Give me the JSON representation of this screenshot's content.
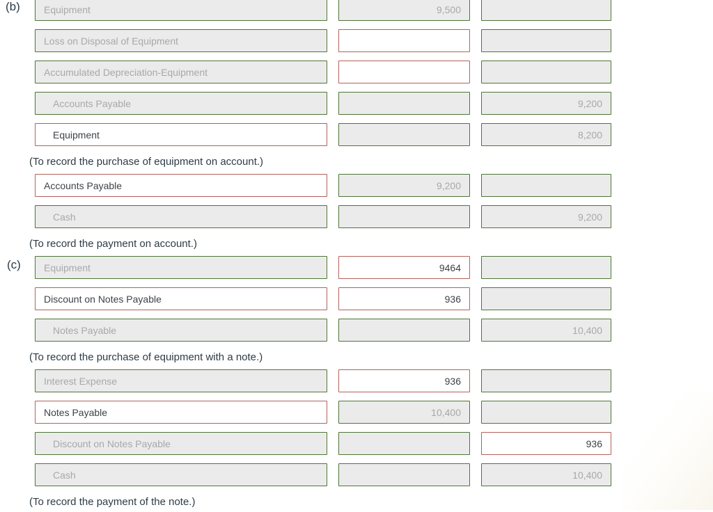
{
  "sections": {
    "b_label": "(b)",
    "c_label": "(c)"
  },
  "colors": {
    "readonly_border_green": "#4e7536",
    "active_border_red": "#b3615c",
    "readonly_field_bg": "#ebebeb",
    "muted_text": "#a8a8a8",
    "dark_text": "#3d4247",
    "memo_text": "#2d3b45"
  },
  "rows": [
    {
      "account": {
        "text": "Equipment",
        "classes": "readonly"
      },
      "debit": {
        "text": "9,500",
        "classes": "readonly"
      },
      "credit": {
        "text": "",
        "classes": "readonly"
      }
    },
    {
      "account": {
        "text": "Loss on Disposal of Equipment",
        "classes": "readonly"
      },
      "debit": {
        "text": "",
        "classes": "active"
      },
      "credit": {
        "text": "",
        "classes": "readonly"
      }
    },
    {
      "account": {
        "text": "Accumulated Depreciation-Equipment",
        "classes": "readonly"
      },
      "debit": {
        "text": "",
        "classes": "active"
      },
      "credit": {
        "text": "",
        "classes": "readonly"
      }
    },
    {
      "account": {
        "text": "Accounts Payable",
        "classes": "readonly indent"
      },
      "debit": {
        "text": "",
        "classes": "readonly"
      },
      "credit": {
        "text": "9,200",
        "classes": "readonly"
      }
    },
    {
      "account": {
        "text": "Equipment",
        "classes": "active indent"
      },
      "debit": {
        "text": "",
        "classes": "readonly"
      },
      "credit": {
        "text": "8,200",
        "classes": "readonly"
      }
    },
    {
      "account": {
        "text": "Accounts Payable",
        "classes": "active"
      },
      "debit": {
        "text": "9,200",
        "classes": "readonly"
      },
      "credit": {
        "text": "",
        "classes": "readonly"
      }
    },
    {
      "account": {
        "text": "Cash",
        "classes": "readonly indent"
      },
      "debit": {
        "text": "",
        "classes": "readonly"
      },
      "credit": {
        "text": "9,200",
        "classes": "readonly"
      }
    },
    {
      "account": {
        "text": "Equipment",
        "classes": "readonly"
      },
      "debit": {
        "text": "9464",
        "classes": "active"
      },
      "credit": {
        "text": "",
        "classes": "readonly"
      }
    },
    {
      "account": {
        "text": "Discount on Notes Payable",
        "classes": "active"
      },
      "debit": {
        "text": "936",
        "classes": "active"
      },
      "credit": {
        "text": "",
        "classes": "readonly"
      }
    },
    {
      "account": {
        "text": "Notes Payable",
        "classes": "readonly indent"
      },
      "debit": {
        "text": "",
        "classes": "readonly"
      },
      "credit": {
        "text": "10,400",
        "classes": "readonly"
      }
    },
    {
      "account": {
        "text": "Interest Expense",
        "classes": "readonly"
      },
      "debit": {
        "text": "936",
        "classes": "active"
      },
      "credit": {
        "text": "",
        "classes": "readonly"
      }
    },
    {
      "account": {
        "text": "Notes Payable",
        "classes": "active"
      },
      "debit": {
        "text": "10,400",
        "classes": "readonly"
      },
      "credit": {
        "text": "",
        "classes": "readonly"
      }
    },
    {
      "account": {
        "text": "Discount on Notes Payable",
        "classes": "readonly indent"
      },
      "debit": {
        "text": "",
        "classes": "readonly"
      },
      "credit": {
        "text": "936",
        "classes": "active"
      }
    },
    {
      "account": {
        "text": "Cash",
        "classes": "readonly indent"
      },
      "debit": {
        "text": "",
        "classes": "readonly"
      },
      "credit": {
        "text": "10,400",
        "classes": "readonly"
      }
    }
  ],
  "memos": [
    "(To record the purchase of equipment on account.)",
    "(To record the payment on account.)",
    "(To record the purchase of equipment with a note.)",
    "(To record the payment of the note.)"
  ]
}
